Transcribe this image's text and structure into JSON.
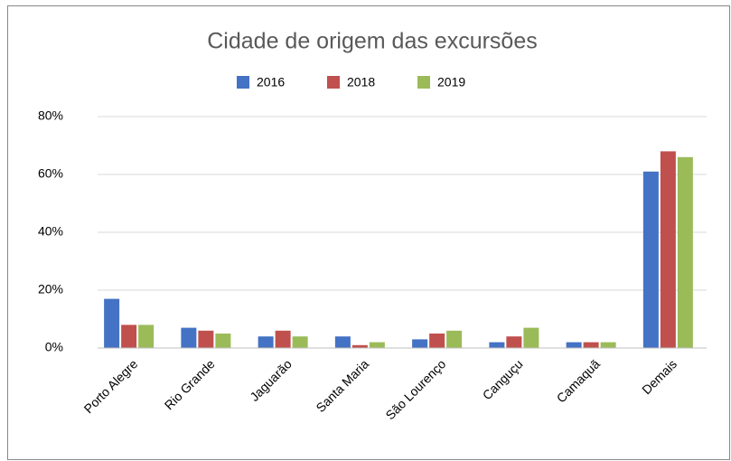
{
  "chart_data": {
    "type": "bar",
    "title": "Cidade de origem das excursões",
    "categories": [
      "Porto Alegre",
      "Rio Grande",
      "Jaguarão",
      "Santa Maria",
      "São Lourenço",
      "Canguçu",
      "Camaquã",
      "Demais"
    ],
    "series": [
      {
        "name": "2016",
        "color": "#4472c4",
        "values": [
          17,
          7,
          4,
          4,
          3,
          2,
          2,
          61
        ]
      },
      {
        "name": "2018",
        "color": "#c0504d",
        "values": [
          8,
          6,
          6,
          1,
          5,
          4,
          2,
          68
        ]
      },
      {
        "name": "2019",
        "color": "#9bbb59",
        "values": [
          8,
          5,
          4,
          2,
          6,
          7,
          2,
          66
        ]
      }
    ],
    "ylim": [
      0,
      80
    ],
    "yticks": [
      {
        "value": 0,
        "label": "0%"
      },
      {
        "value": 20,
        "label": "20%"
      },
      {
        "value": 40,
        "label": "40%"
      },
      {
        "value": 60,
        "label": "60%"
      },
      {
        "value": 80,
        "label": "80%"
      }
    ],
    "grid": true,
    "legend": "top"
  }
}
